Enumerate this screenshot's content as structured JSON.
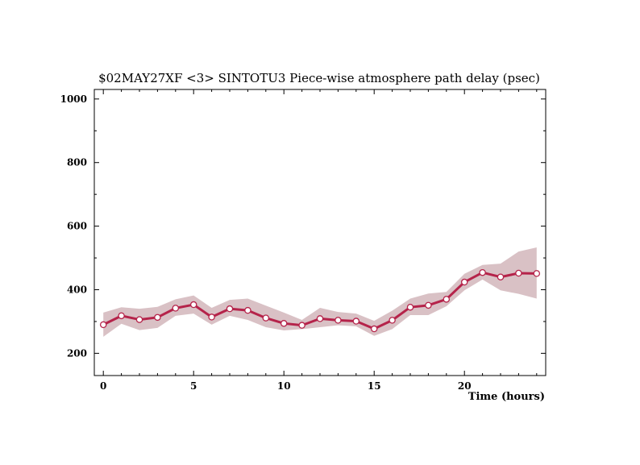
{
  "chart_data": {
    "type": "line",
    "title": "$02MAY27XF <3>  SINTOTU3  Piece-wise atmosphere path delay (psec)",
    "xlabel": "Time (hours)",
    "ylabel": "",
    "xlim": [
      -0.5,
      24.5
    ],
    "ylim": [
      130,
      1030
    ],
    "x_ticks": [
      0,
      5,
      10,
      15,
      20
    ],
    "y_ticks": [
      200,
      400,
      600,
      800,
      1000
    ],
    "grid": false,
    "colors": {
      "line": "#b5234a",
      "band": "#d9c1c5",
      "marker_face": "#ffffff"
    },
    "series": [
      {
        "x": [
          0,
          1,
          2,
          3,
          4,
          5,
          6,
          7,
          8,
          9,
          10,
          11,
          12,
          13,
          14,
          15,
          16,
          17,
          18,
          19,
          20,
          21,
          22,
          23,
          24
        ],
        "values": [
          290,
          318,
          306,
          313,
          342,
          353,
          314,
          340,
          335,
          311,
          294,
          288,
          309,
          304,
          301,
          277,
          304,
          345,
          351,
          370,
          424,
          454,
          440,
          452,
          451
        ],
        "upper": [
          328,
          345,
          340,
          346,
          370,
          382,
          343,
          368,
          372,
          350,
          328,
          305,
          343,
          330,
          325,
          302,
          334,
          372,
          388,
          393,
          450,
          478,
          482,
          520,
          533
        ],
        "lower": [
          252,
          293,
          273,
          280,
          318,
          325,
          290,
          318,
          305,
          282,
          272,
          276,
          282,
          288,
          285,
          255,
          276,
          320,
          320,
          348,
          398,
          432,
          398,
          387,
          372
        ]
      }
    ]
  }
}
